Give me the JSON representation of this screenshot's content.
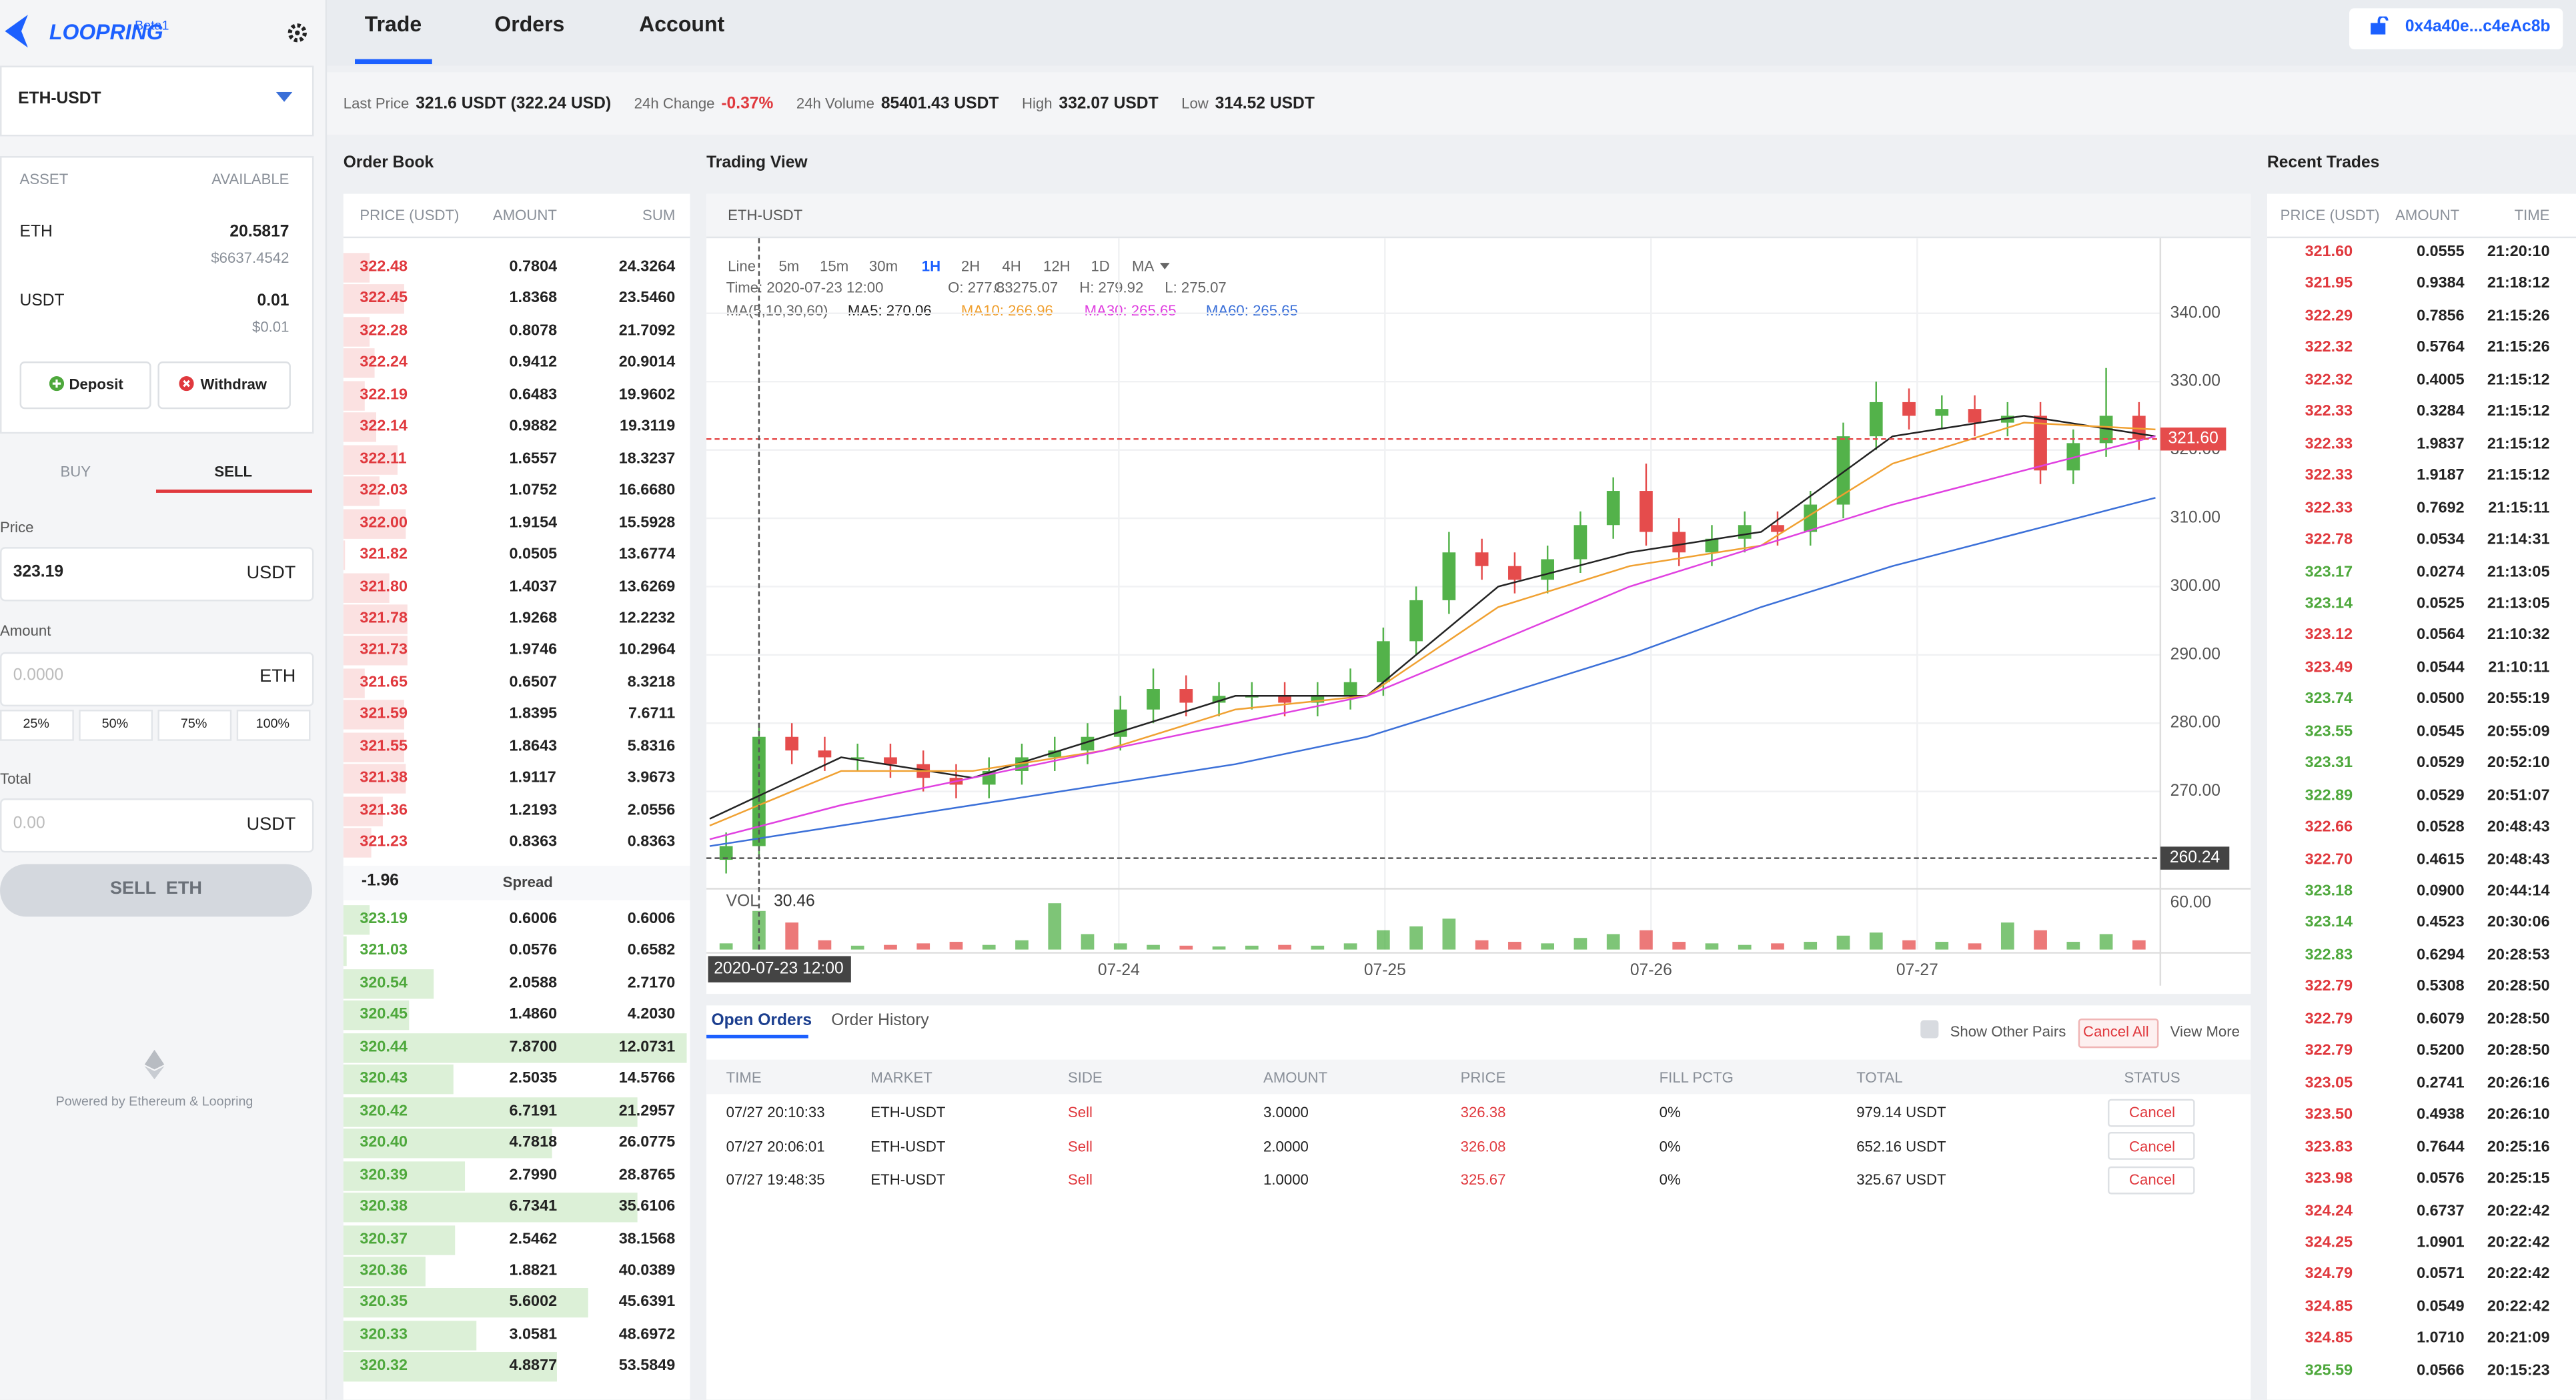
{
  "header": {
    "logo": "LOOPRING",
    "badge": "Beta1",
    "nav": [
      "Trade",
      "Orders",
      "Account"
    ],
    "wallet": "0x4a40e...c4eAc8b"
  },
  "ticker": [
    {
      "label": "Last Price",
      "value": "321.6 USDT (322.24 USD)"
    },
    {
      "label": "24h Change",
      "value": "-0.37%"
    },
    {
      "label": "24h Volume",
      "value": "85401.43 USDT"
    },
    {
      "label": "High",
      "value": "332.07 USDT"
    },
    {
      "label": "Low",
      "value": "314.52 USDT"
    }
  ],
  "sidebar": {
    "market": "ETH-USDT",
    "asset_header": [
      "ASSET",
      "AVAILABLE"
    ],
    "assets": [
      {
        "name": "ETH",
        "amount": "20.5817",
        "usd": "$6637.4542"
      },
      {
        "name": "USDT",
        "amount": "0.01",
        "usd": "$0.01"
      }
    ],
    "deposit": "Deposit",
    "withdraw": "Withdraw",
    "tabs": [
      "BUY",
      "SELL"
    ],
    "price_label": "Price",
    "price": "323.19",
    "price_unit": "USDT",
    "amount_label": "Amount",
    "amount_placeholder": "0.0000",
    "amount_unit": "ETH",
    "percents": [
      "25%",
      "50%",
      "75%",
      "100%"
    ],
    "total_label": "Total",
    "total_placeholder": "0.00",
    "total_unit": "USDT",
    "submit": "SELL  ETH",
    "footer": "Powered by Ethereum & Loopring"
  },
  "order_book": {
    "title": "Order Book",
    "columns": [
      "PRICE (USDT)",
      "AMOUNT",
      "SUM"
    ],
    "asks": [
      [
        "322.48",
        "0.7804",
        "24.3264"
      ],
      [
        "322.45",
        "1.8368",
        "23.5460"
      ],
      [
        "322.28",
        "0.8078",
        "21.7092"
      ],
      [
        "322.24",
        "0.9412",
        "20.9014"
      ],
      [
        "322.19",
        "0.6483",
        "19.9602"
      ],
      [
        "322.14",
        "0.9882",
        "19.3119"
      ],
      [
        "322.11",
        "1.6557",
        "18.3237"
      ],
      [
        "322.03",
        "1.0752",
        "16.6680"
      ],
      [
        "322.00",
        "1.9154",
        "15.5928"
      ],
      [
        "321.82",
        "0.0505",
        "13.6774"
      ],
      [
        "321.80",
        "1.4037",
        "13.6269"
      ],
      [
        "321.78",
        "1.9268",
        "12.2232"
      ],
      [
        "321.73",
        "1.9746",
        "10.2964"
      ],
      [
        "321.65",
        "0.6507",
        "8.3218"
      ],
      [
        "321.59",
        "1.8395",
        "7.6711"
      ],
      [
        "321.55",
        "1.8643",
        "5.8316"
      ],
      [
        "321.38",
        "1.9117",
        "3.9673"
      ],
      [
        "321.36",
        "1.2193",
        "2.0556"
      ],
      [
        "321.23",
        "0.8363",
        "0.8363"
      ]
    ],
    "spread": [
      "-1.96",
      "Spread"
    ],
    "bids": [
      [
        "323.19",
        "0.6006",
        "0.6006"
      ],
      [
        "321.03",
        "0.0576",
        "0.6582"
      ],
      [
        "320.54",
        "2.0588",
        "2.7170"
      ],
      [
        "320.45",
        "1.4860",
        "4.2030"
      ],
      [
        "320.44",
        "7.8700",
        "12.0731"
      ],
      [
        "320.43",
        "2.5035",
        "14.5766"
      ],
      [
        "320.42",
        "6.7191",
        "21.2957"
      ],
      [
        "320.40",
        "4.7818",
        "26.0775"
      ],
      [
        "320.39",
        "2.7990",
        "28.8765"
      ],
      [
        "320.38",
        "6.7341",
        "35.6106"
      ],
      [
        "320.37",
        "2.5462",
        "38.1568"
      ],
      [
        "320.36",
        "1.8821",
        "40.0389"
      ],
      [
        "320.35",
        "5.6002",
        "45.6391"
      ],
      [
        "320.33",
        "3.0581",
        "48.6972"
      ],
      [
        "320.32",
        "4.8877",
        "53.5849"
      ]
    ]
  },
  "trading_view": {
    "title": "Trading View",
    "market": "ETH-USDT",
    "intervals": [
      "Line",
      "5m",
      "15m",
      "30m",
      "1H",
      "2H",
      "4H",
      "12H",
      "1D",
      "MA"
    ],
    "active_interval": 4,
    "info": [
      "Time: 2020-07-23 12:00",
      "O: 277.83",
      "C: 275.07",
      "H: 279.92",
      "L: 275.07"
    ],
    "ma_legend": [
      "MA(5,10,30,60)",
      "MA5: 270.06",
      "MA10: 266.96",
      "MA30: 265.65",
      "MA60: 265.65"
    ],
    "chart": {
      "type": "candlestick",
      "up_color": "#53b24a",
      "down_color": "#e54c4c",
      "xlim": [
        0,
        44
      ],
      "ylim": [
        256,
        351
      ],
      "yticks": [
        {
          "value": 270,
          "label": "270.00"
        },
        {
          "value": 280,
          "label": "280.00"
        },
        {
          "value": 290,
          "label": "290.00"
        },
        {
          "value": 300,
          "label": "300.00"
        },
        {
          "value": 310,
          "label": "310.00"
        },
        {
          "value": 320,
          "label": "320.00"
        },
        {
          "value": 330,
          "label": "330.00"
        },
        {
          "value": 340,
          "label": "340.00"
        }
      ],
      "xticks": [
        {
          "value": 12.45,
          "label": "07-24"
        },
        {
          "value": 20.55,
          "label": "07-25"
        },
        {
          "value": 28.65,
          "label": "07-26"
        },
        {
          "value": 36.75,
          "label": "07-27"
        }
      ],
      "last_price": {
        "value": 321.6,
        "label": "321.60"
      },
      "crosshair_price": {
        "value": 260.24,
        "label": "260.24"
      },
      "crosshair_time": "2020-07-23 12:00",
      "open": [
        260,
        262,
        278,
        276,
        275,
        275,
        274,
        272,
        271,
        273,
        275,
        276,
        278,
        282,
        285,
        283,
        284,
        284,
        283,
        284,
        286,
        292,
        298,
        305,
        303,
        301,
        304,
        309,
        314,
        308,
        305,
        307,
        309,
        308,
        312,
        322,
        327,
        325,
        326,
        324,
        325,
        317,
        321,
        325
      ],
      "high": [
        264,
        280,
        280,
        278,
        277,
        277,
        276,
        274,
        275,
        277,
        278,
        280,
        284,
        288,
        287,
        286,
        286,
        286,
        286,
        288,
        294,
        300,
        308,
        307,
        305,
        306,
        311,
        316,
        318,
        310,
        309,
        311,
        311,
        314,
        324,
        330,
        329,
        328,
        328,
        327,
        327,
        323,
        332,
        327
      ],
      "low": [
        258,
        260,
        274,
        273,
        273,
        272,
        270,
        269,
        269,
        271,
        273,
        274,
        276,
        280,
        281,
        281,
        282,
        281,
        281,
        282,
        284,
        290,
        296,
        301,
        299,
        299,
        302,
        307,
        306,
        303,
        303,
        305,
        306,
        306,
        310,
        320,
        323,
        323,
        322,
        322,
        315,
        315,
        319,
        320
      ],
      "close": [
        262,
        278,
        276,
        275,
        275,
        274,
        272,
        271,
        273,
        275,
        276,
        278,
        282,
        285,
        283,
        284,
        284,
        283,
        284,
        286,
        292,
        298,
        305,
        303,
        301,
        304,
        309,
        314,
        308,
        305,
        307,
        309,
        308,
        312,
        322,
        327,
        325,
        326,
        324,
        325,
        317,
        321,
        325,
        321.6
      ],
      "ma": [
        {
          "name": "MA5",
          "color": "#222222",
          "values": [
            266,
            275,
            272,
            278,
            284,
            284,
            300,
            305,
            308,
            322,
            325,
            322
          ]
        },
        {
          "name": "MA10",
          "color": "#f0a030",
          "values": [
            265,
            273,
            273,
            276,
            282,
            284,
            297,
            303,
            306,
            318,
            324,
            323
          ]
        },
        {
          "name": "MA30",
          "color": "#e040e0",
          "values": [
            263,
            268,
            272,
            276,
            280,
            284,
            292,
            300,
            306,
            312,
            317,
            322
          ]
        },
        {
          "name": "MA60",
          "color": "#3a6fd8",
          "values": [
            262,
            265,
            268,
            271,
            274,
            278,
            284,
            290,
            297,
            303,
            308,
            313
          ]
        }
      ],
      "volume_label": "VOL",
      "volume_value": "30.46",
      "vlim": [
        0,
        66
      ],
      "vticks": [
        {
          "value": 60,
          "label": "60.00"
        }
      ],
      "volume": [
        8,
        50,
        35,
        12,
        5,
        6,
        8,
        10,
        6,
        12,
        60,
        20,
        8,
        6,
        5,
        4,
        5,
        6,
        5,
        8,
        25,
        30,
        40,
        12,
        10,
        8,
        15,
        20,
        25,
        10,
        8,
        6,
        8,
        10,
        18,
        22,
        12,
        10,
        8,
        35,
        25,
        10,
        20,
        12
      ]
    }
  },
  "open_orders": {
    "tabs": [
      "Open Orders",
      "Order History"
    ],
    "show_other": "Show Other Pairs",
    "cancel_all": "Cancel All",
    "view_more": "View More",
    "columns": [
      "TIME",
      "MARKET",
      "SIDE",
      "AMOUNT",
      "PRICE",
      "FILL PCTG",
      "TOTAL",
      "STATUS"
    ],
    "rows": [
      [
        "07/27 20:10:33",
        "ETH-USDT",
        "Sell",
        "3.0000",
        "326.38",
        "0%",
        "979.14 USDT",
        "Cancel"
      ],
      [
        "07/27 20:06:01",
        "ETH-USDT",
        "Sell",
        "2.0000",
        "326.08",
        "0%",
        "652.16 USDT",
        "Cancel"
      ],
      [
        "07/27 19:48:35",
        "ETH-USDT",
        "Sell",
        "1.0000",
        "325.67",
        "0%",
        "325.67 USDT",
        "Cancel"
      ]
    ]
  },
  "recent_trades": {
    "title": "Recent Trades",
    "columns": [
      "PRICE (USDT)",
      "AMOUNT",
      "TIME"
    ],
    "rows": [
      {
        "price": "321.60",
        "amount": "0.0555",
        "time": "21:20:10",
        "color": "red"
      },
      {
        "price": "321.95",
        "amount": "0.9384",
        "time": "21:18:12",
        "color": "red"
      },
      {
        "price": "322.29",
        "amount": "0.7856",
        "time": "21:15:26",
        "color": "red"
      },
      {
        "price": "322.32",
        "amount": "0.5764",
        "time": "21:15:26",
        "color": "red"
      },
      {
        "price": "322.32",
        "amount": "0.4005",
        "time": "21:15:12",
        "color": "red"
      },
      {
        "price": "322.33",
        "amount": "0.3284",
        "time": "21:15:12",
        "color": "red"
      },
      {
        "price": "322.33",
        "amount": "1.9837",
        "time": "21:15:12",
        "color": "red"
      },
      {
        "price": "322.33",
        "amount": "1.9187",
        "time": "21:15:12",
        "color": "red"
      },
      {
        "price": "322.33",
        "amount": "0.7692",
        "time": "21:15:11",
        "color": "red"
      },
      {
        "price": "322.78",
        "amount": "0.0534",
        "time": "21:14:31",
        "color": "red"
      },
      {
        "price": "323.17",
        "amount": "0.0274",
        "time": "21:13:05",
        "color": "green"
      },
      {
        "price": "323.14",
        "amount": "0.0525",
        "time": "21:13:05",
        "color": "green"
      },
      {
        "price": "323.12",
        "amount": "0.0564",
        "time": "21:10:32",
        "color": "red"
      },
      {
        "price": "323.49",
        "amount": "0.0544",
        "time": "21:10:11",
        "color": "red"
      },
      {
        "price": "323.74",
        "amount": "0.0500",
        "time": "20:55:19",
        "color": "green"
      },
      {
        "price": "323.55",
        "amount": "0.0545",
        "time": "20:55:09",
        "color": "green"
      },
      {
        "price": "323.31",
        "amount": "0.0529",
        "time": "20:52:10",
        "color": "green"
      },
      {
        "price": "322.89",
        "amount": "0.0529",
        "time": "20:51:07",
        "color": "green"
      },
      {
        "price": "322.66",
        "amount": "0.0528",
        "time": "20:48:43",
        "color": "red"
      },
      {
        "price": "322.70",
        "amount": "0.4615",
        "time": "20:48:43",
        "color": "red"
      },
      {
        "price": "323.18",
        "amount": "0.0900",
        "time": "20:44:14",
        "color": "green"
      },
      {
        "price": "323.14",
        "amount": "0.4523",
        "time": "20:30:06",
        "color": "green"
      },
      {
        "price": "322.83",
        "amount": "0.6294",
        "time": "20:28:53",
        "color": "green"
      },
      {
        "price": "322.79",
        "amount": "0.5308",
        "time": "20:28:50",
        "color": "red"
      },
      {
        "price": "322.79",
        "amount": "0.6079",
        "time": "20:28:50",
        "color": "red"
      },
      {
        "price": "322.79",
        "amount": "0.5200",
        "time": "20:28:50",
        "color": "red"
      },
      {
        "price": "323.05",
        "amount": "0.2741",
        "time": "20:26:16",
        "color": "red"
      },
      {
        "price": "323.50",
        "amount": "0.4938",
        "time": "20:26:10",
        "color": "red"
      },
      {
        "price": "323.83",
        "amount": "0.7644",
        "time": "20:25:16",
        "color": "red"
      },
      {
        "price": "323.98",
        "amount": "0.0576",
        "time": "20:25:15",
        "color": "red"
      },
      {
        "price": "324.24",
        "amount": "0.6737",
        "time": "20:22:42",
        "color": "red"
      },
      {
        "price": "324.25",
        "amount": "1.0901",
        "time": "20:22:42",
        "color": "red"
      },
      {
        "price": "324.79",
        "amount": "0.0571",
        "time": "20:22:42",
        "color": "red"
      },
      {
        "price": "324.85",
        "amount": "0.0549",
        "time": "20:22:42",
        "color": "red"
      },
      {
        "price": "324.85",
        "amount": "1.0710",
        "time": "20:21:09",
        "color": "red"
      },
      {
        "price": "325.59",
        "amount": "0.0566",
        "time": "20:15:23",
        "color": "green"
      }
    ]
  }
}
